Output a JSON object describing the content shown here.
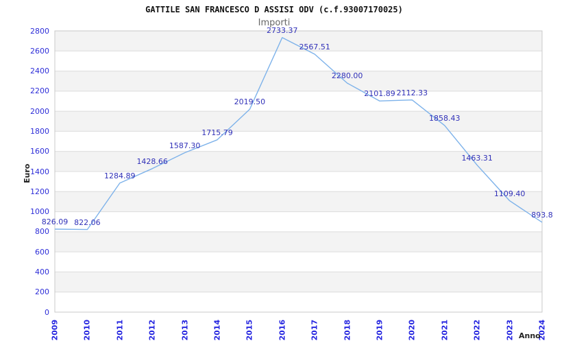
{
  "header": {
    "title": "GATTILE SAN FRANCESCO D ASSISI ODV (c.f.93007170025)",
    "subtitle": "Importi"
  },
  "chart_data": {
    "type": "line",
    "title": "GATTILE SAN FRANCESCO D ASSISI ODV (c.f.93007170025)",
    "subtitle": "Importi",
    "xlabel": "Anno",
    "ylabel": "Euro",
    "categories": [
      "2009",
      "2010",
      "2011",
      "2012",
      "2013",
      "2014",
      "2015",
      "2016",
      "2017",
      "2018",
      "2019",
      "2020",
      "2021",
      "2022",
      "2023",
      "2024"
    ],
    "values": [
      826.09,
      822.06,
      1284.89,
      1428.66,
      1587.3,
      1715.79,
      2019.5,
      2733.37,
      2567.51,
      2280.0,
      2101.89,
      2112.33,
      1858.43,
      1463.31,
      1109.4,
      893.8
    ],
    "value_labels": [
      "826.09",
      "822.06",
      "1284.89",
      "1428.66",
      "1587.30",
      "1715.79",
      "2019.50",
      "2733.37",
      "2567.51",
      "2280.00",
      "2101.89",
      "2112.33",
      "1858.43",
      "1463.31",
      "1109.40",
      "893.8"
    ],
    "ylim": [
      0,
      2800
    ],
    "ytick_step": 200,
    "grid": true,
    "legend": "none",
    "colors": {
      "line": "#7db2ea",
      "band": "#f3f3f3",
      "gridline": "#dcdcdc",
      "plot_border": "#c9c9c9",
      "tick_text": "#2d2dd8",
      "value_label_text": "#3030b8",
      "title_text": "#111111",
      "subtitle_text": "#666666",
      "axis_title_text": "#222222"
    }
  }
}
